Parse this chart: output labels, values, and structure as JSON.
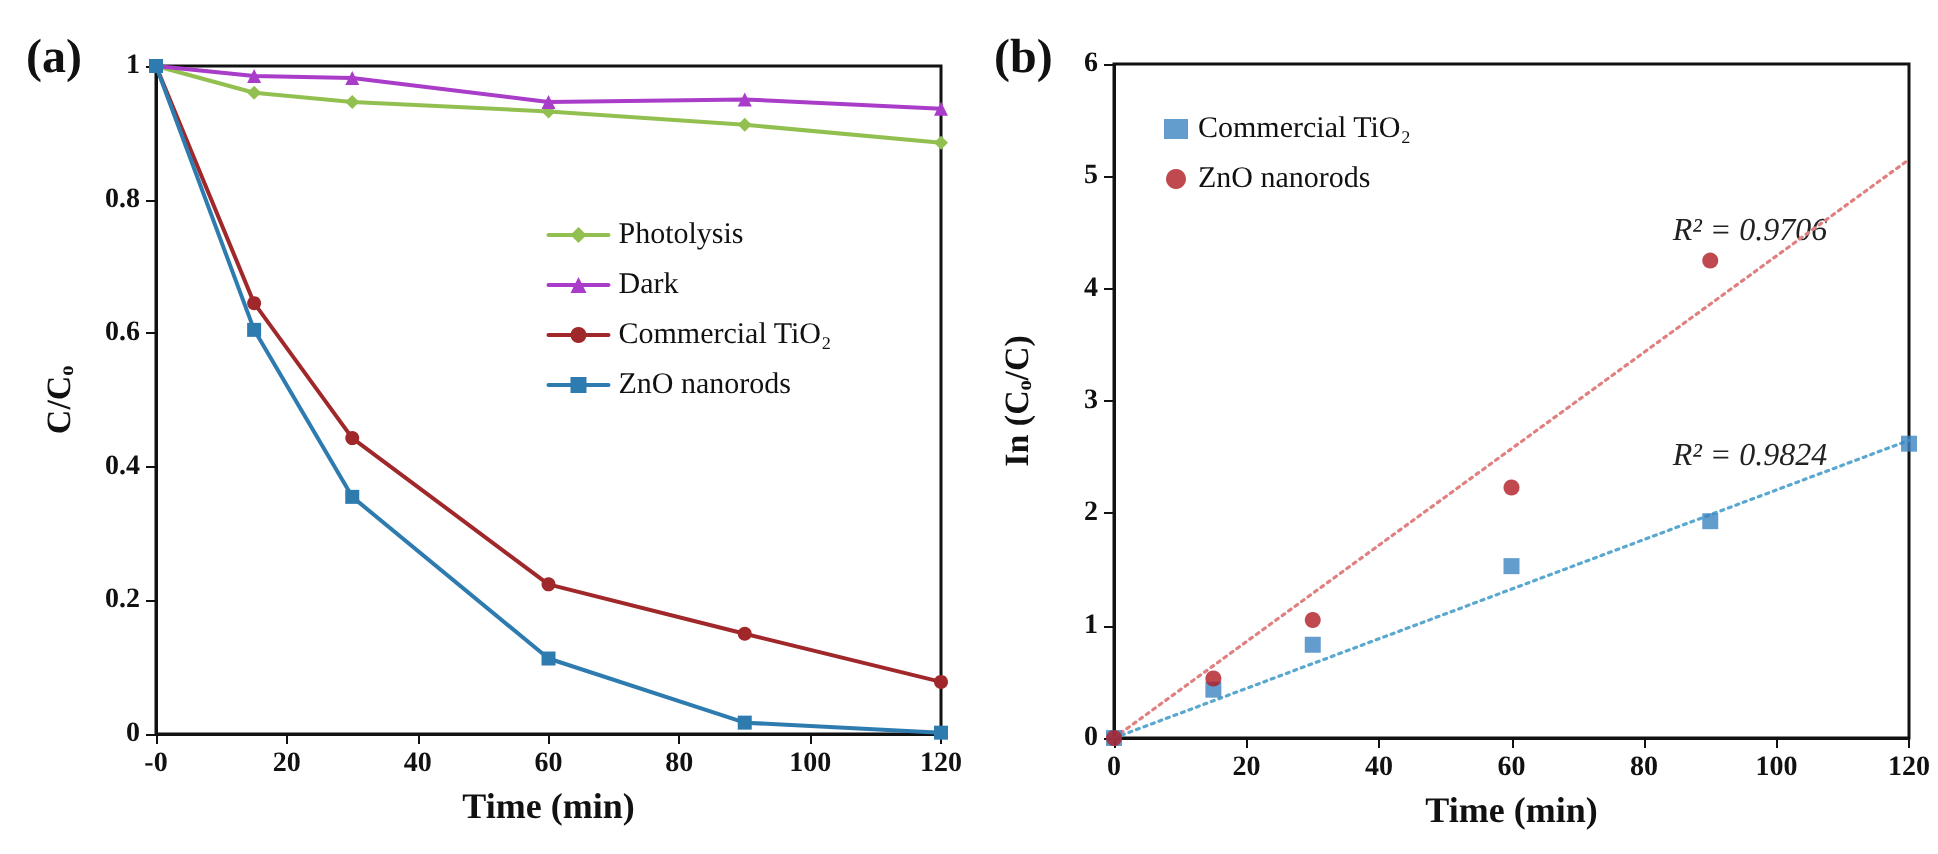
{
  "chart_data": [
    {
      "type": "line",
      "title": "(a)",
      "xlabel": "Time (min)",
      "ylabel": "C/Cₒ",
      "x": [
        0,
        15,
        30,
        60,
        90,
        120
      ],
      "xlim": [
        0,
        120
      ],
      "xticks": [
        {
          "value": 0,
          "label": "-0"
        },
        20,
        40,
        60,
        80,
        100,
        120
      ],
      "ylim": [
        0,
        1
      ],
      "yticks": [
        0,
        0.2,
        0.4,
        0.6,
        0.8,
        1
      ],
      "grid": false,
      "legend": "top right",
      "line_style": "solid",
      "series": [
        {
          "name": "Photolysis",
          "color": "#92c050",
          "marker": "diamond",
          "values": [
            1,
            0.96,
            0.946,
            0.932,
            0.912,
            0.885
          ]
        },
        {
          "name": "Dark",
          "color": "#a93cc8",
          "marker": "triangle",
          "values": [
            1,
            0.985,
            0.982,
            0.946,
            0.95,
            0.936
          ]
        },
        {
          "name": "Commercial TiO₂",
          "color": "#a0282a",
          "marker": "circle",
          "values": [
            1,
            0.645,
            0.443,
            0.224,
            0.15,
            0.078
          ]
        },
        {
          "name": "ZnO nanorods",
          "color": "#2e7bb0",
          "marker": "square",
          "values": [
            1,
            0.605,
            0.355,
            0.113,
            0.017,
            0.002
          ]
        }
      ]
    },
    {
      "type": "scatter",
      "title": "(b)",
      "xlabel": "Time (min)",
      "ylabel": "In (Cₒ/C)",
      "x": [
        0,
        15,
        30,
        60,
        90,
        120
      ],
      "xlim": [
        0,
        120
      ],
      "xticks": [
        0,
        20,
        40,
        60,
        80,
        100,
        120
      ],
      "ylim": [
        0,
        6
      ],
      "yticks": [
        0,
        1,
        2,
        3,
        4,
        5,
        6
      ],
      "grid": false,
      "legend": "top left",
      "annotations": [
        "R² = 0.9706",
        "R² = 0.9824"
      ],
      "series": [
        {
          "name": "Commercial TiO₂",
          "color": "#3c85c0",
          "marker": "square",
          "values": [
            0,
            0.43,
            0.83,
            1.53,
            1.93,
            2.62
          ]
        },
        {
          "name": "ZnO nanorods",
          "color": "#b01c24",
          "marker": "circle",
          "x": [
            0,
            15,
            30,
            60,
            90
          ],
          "values": [
            0,
            0.53,
            1.05,
            2.23,
            4.25
          ]
        },
        {
          "type": "line",
          "color": "#e08080",
          "marker": "none",
          "line_style": "dotted",
          "x": [
            0,
            120
          ],
          "values": [
            0,
            5.15
          ]
        },
        {
          "type": "line",
          "color": "#5aa8d0",
          "marker": "none",
          "line_style": "dotted",
          "x": [
            0,
            120
          ],
          "values": [
            0,
            2.65
          ]
        }
      ]
    }
  ]
}
